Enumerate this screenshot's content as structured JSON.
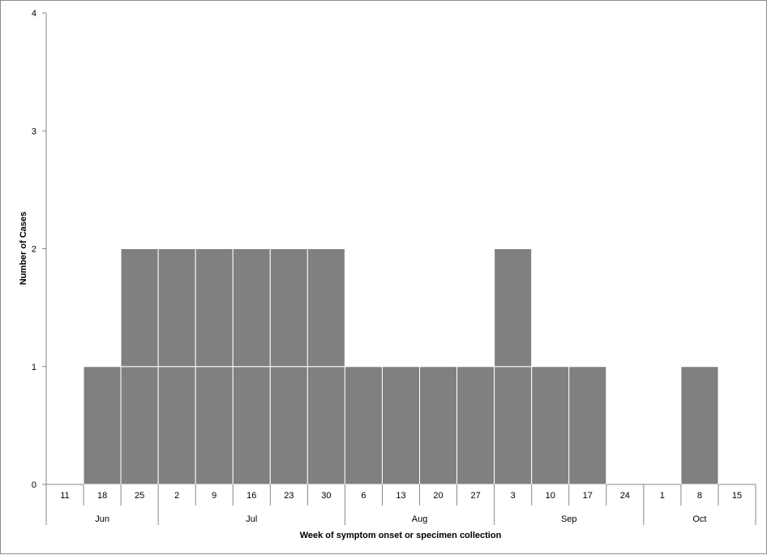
{
  "chart_data": {
    "type": "bar",
    "style": "histogram",
    "x_weeks": [
      "11",
      "18",
      "25",
      "2",
      "9",
      "16",
      "23",
      "30",
      "6",
      "13",
      "20",
      "27",
      "3",
      "10",
      "17",
      "24",
      "1",
      "8",
      "15"
    ],
    "month_groups": [
      {
        "label": "Jun",
        "week_count": 3
      },
      {
        "label": "Jul",
        "week_count": 5
      },
      {
        "label": "Aug",
        "week_count": 4
      },
      {
        "label": "Sep",
        "week_count": 4
      },
      {
        "label": "Oct",
        "week_count": 3
      }
    ],
    "values": [
      0,
      1,
      2,
      2,
      2,
      2,
      2,
      2,
      1,
      1,
      1,
      1,
      2,
      1,
      1,
      0,
      0,
      1,
      0
    ],
    "unit_stacked_boxes": true,
    "xlabel": "Week of symptom onset or specimen collection",
    "ylabel": "Number of Cases",
    "ylim": [
      0,
      4
    ],
    "y_ticks": [
      0,
      1,
      2,
      3,
      4
    ],
    "grid": false,
    "legend": "none",
    "bar_color": "#808080",
    "box_divider_color": "#ffffff"
  }
}
